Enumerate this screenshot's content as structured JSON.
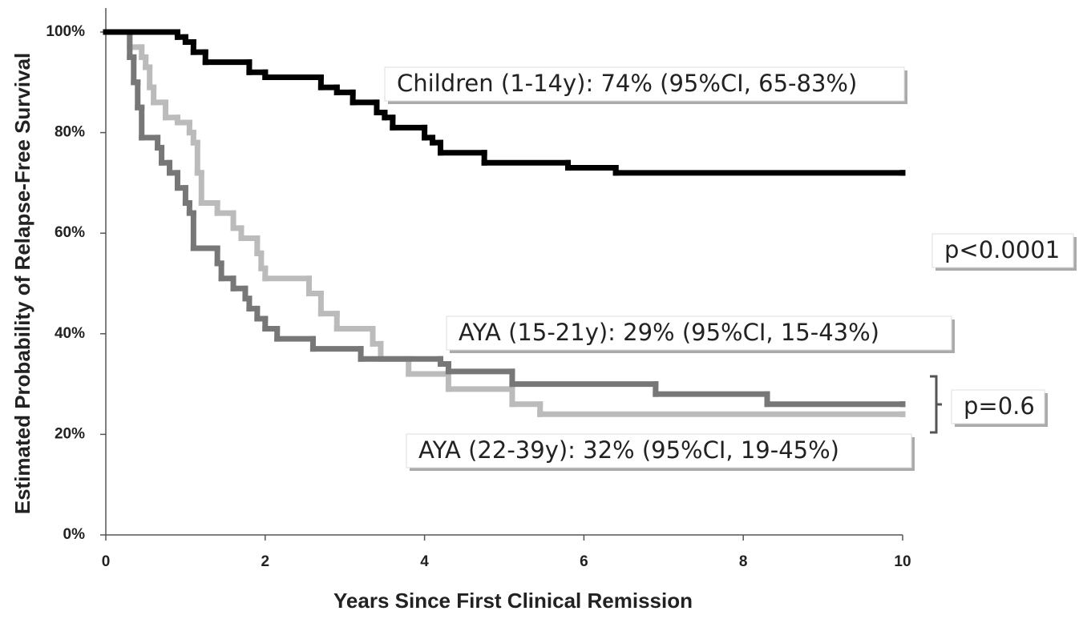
{
  "chart_data": {
    "type": "step",
    "ylabel": "Estimated Probability  of  Relapse-Free Survival",
    "xlabel": "Years  Since  First Clinical Remission",
    "xlim": [
      0,
      10
    ],
    "xticks": [
      0,
      2,
      4,
      6,
      8,
      10
    ],
    "ylim": [
      0,
      100
    ],
    "yticks": [
      {
        "value": 0,
        "label": "0%"
      },
      {
        "value": 20,
        "label": "20%"
      },
      {
        "value": 40,
        "label": "40%"
      },
      {
        "value": 60,
        "label": "60%"
      },
      {
        "value": 80,
        "label": "80%"
      },
      {
        "value": 100,
        "label": "100%"
      }
    ],
    "series": [
      {
        "name": "Children (1-14y):  74%  (95%CI, 65-83%)",
        "color": "#000000",
        "x": [
          0,
          0.9,
          1.0,
          1.1,
          1.25,
          1.8,
          2.0,
          2.7,
          2.9,
          3.1,
          3.4,
          3.5,
          3.6,
          4.0,
          4.1,
          4.2,
          4.75,
          5.8,
          6.4,
          10
        ],
        "values": [
          100,
          99,
          98,
          96,
          94,
          92,
          91,
          89,
          88,
          86,
          84,
          83,
          81,
          79,
          78,
          76,
          74,
          73,
          72,
          72
        ]
      },
      {
        "name": "AYA (15-21y):  29%  (95%CI, 15-43%)",
        "color": "#777777",
        "x": [
          0,
          0.3,
          0.35,
          0.4,
          0.45,
          0.65,
          0.7,
          0.8,
          0.9,
          1.0,
          1.05,
          1.1,
          1.4,
          1.45,
          1.6,
          1.75,
          1.8,
          1.9,
          2.0,
          2.15,
          2.6,
          3.2,
          4.2,
          4.3,
          5.1,
          6.9,
          8.3,
          10
        ],
        "values": [
          100,
          95,
          90,
          85,
          79,
          77,
          74,
          72,
          69,
          66,
          64,
          57,
          54,
          51,
          49,
          47,
          45,
          43,
          41,
          39,
          37,
          35,
          34,
          32.5,
          30,
          28,
          26,
          26
        ]
      },
      {
        "name": "AYA (22-39y):  32%  (95%CI, 19-45%)",
        "color": "#bbbbbb",
        "x": [
          0,
          0.3,
          0.45,
          0.5,
          0.55,
          0.6,
          0.75,
          0.9,
          1.05,
          1.1,
          1.15,
          1.2,
          1.4,
          1.6,
          1.7,
          1.9,
          1.95,
          2.0,
          2.55,
          2.7,
          2.9,
          3.35,
          3.45,
          3.8,
          4.3,
          5.1,
          5.45,
          10
        ],
        "values": [
          100,
          97,
          95,
          93,
          89,
          86,
          83,
          82,
          80,
          78,
          72,
          66,
          64,
          61,
          59,
          56,
          53,
          51,
          48,
          44,
          41,
          38,
          35,
          32,
          29,
          26,
          24,
          24
        ]
      }
    ],
    "annotations": [
      "p<0.0001",
      "p=0.6"
    ]
  }
}
